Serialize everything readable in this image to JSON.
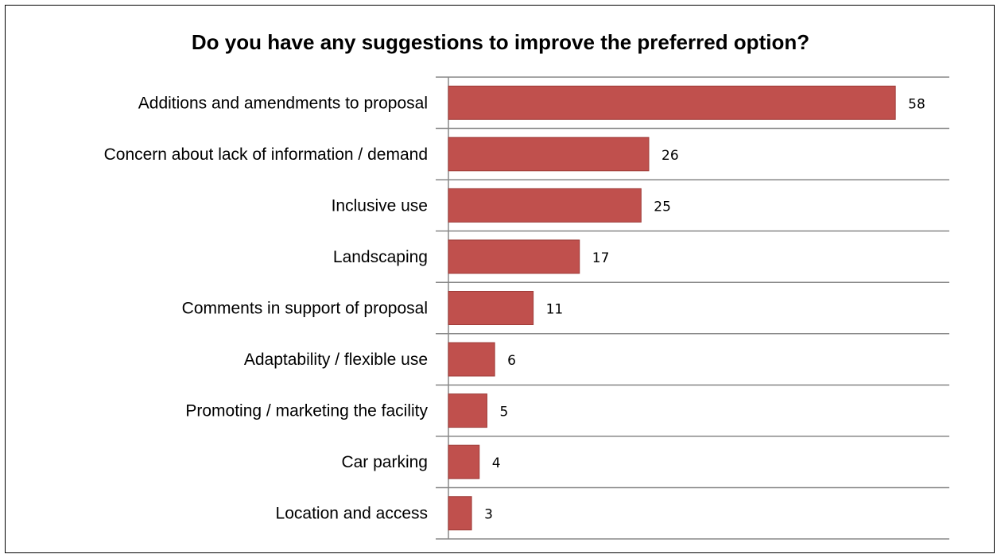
{
  "chart_data": {
    "type": "bar",
    "orientation": "horizontal",
    "title": "Do you have any suggestions to improve the preferred option?",
    "categories": [
      "Additions and amendments to proposal",
      "Concern about lack of information / demand",
      "Inclusive use",
      "Landscaping",
      "Comments in support of proposal",
      "Adaptability / flexible use",
      "Promoting / marketing the facility",
      "Car parking",
      "Location and access"
    ],
    "values": [
      58,
      26,
      25,
      17,
      11,
      6,
      5,
      4,
      3
    ],
    "xlim": [
      0,
      65
    ],
    "grid": true,
    "bar_color": "#C0504D",
    "data_labels": true
  }
}
